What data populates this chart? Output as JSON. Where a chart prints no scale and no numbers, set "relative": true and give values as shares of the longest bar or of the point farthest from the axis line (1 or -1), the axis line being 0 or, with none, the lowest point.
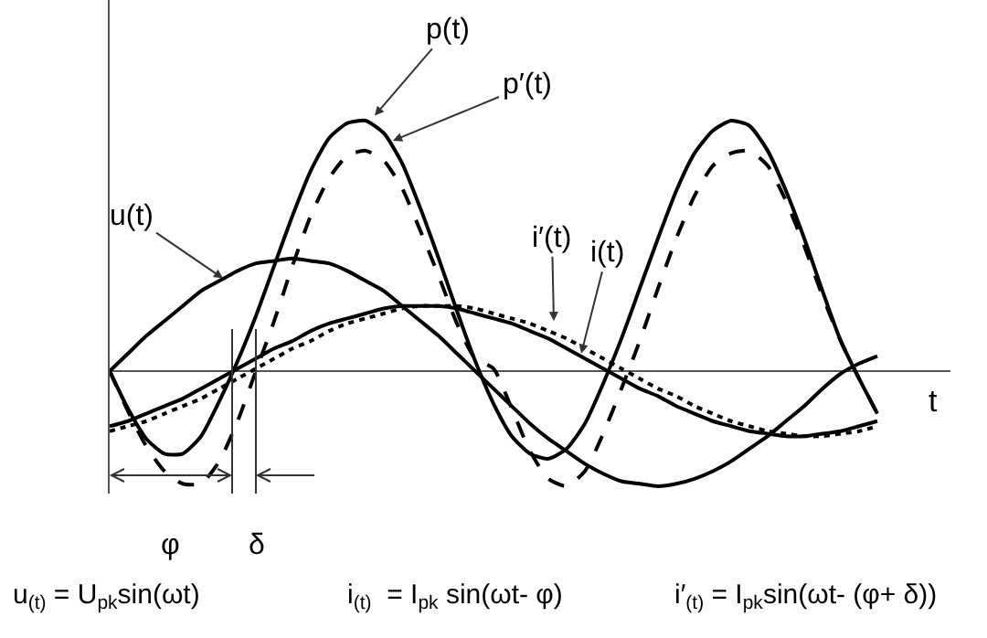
{
  "chart_data": {
    "type": "line",
    "relative": true,
    "legend": false,
    "xlabel": "t",
    "categories": [
      null,
      null,
      null,
      null,
      null,
      null,
      null,
      null,
      null,
      null,
      null,
      null,
      null,
      null,
      null,
      null,
      null,
      null,
      null,
      null,
      null,
      null,
      null,
      null,
      null,
      null,
      null,
      null,
      null,
      null,
      null,
      null,
      null,
      null,
      null,
      null,
      null,
      null,
      null,
      null,
      null,
      null,
      null
    ],
    "series": [
      {
        "name": "u(t)",
        "color": "#000000",
        "line_style": "solid",
        "values": [
          0,
          0.07,
          0.14,
          0.2,
          0.26,
          0.32,
          0.36,
          0.4,
          0.43,
          0.44,
          0.45,
          0.44,
          0.43,
          0.4,
          0.36,
          0.32,
          0.26,
          0.2,
          0.14,
          0.07,
          0,
          -0.07,
          -0.14,
          -0.21,
          -0.27,
          -0.32,
          -0.37,
          -0.41,
          -0.44,
          -0.45,
          -0.46,
          -0.45,
          -0.43,
          -0.4,
          -0.36,
          -0.31,
          -0.26,
          -0.2,
          -0.14,
          -0.07,
          -0.01,
          0.03,
          0.06
        ]
      },
      {
        "name": "i(t)",
        "color": "#000000",
        "line_style": "solid",
        "values": [
          -0.22,
          -0.2,
          -0.17,
          -0.14,
          -0.11,
          -0.07,
          -0.03,
          0.01,
          0.05,
          0.09,
          0.12,
          0.16,
          0.19,
          0.21,
          0.23,
          0.25,
          0.26,
          0.26,
          0.26,
          0.25,
          0.23,
          0.21,
          0.19,
          0.16,
          0.13,
          0.09,
          0.05,
          0.01,
          -0.03,
          -0.07,
          -0.1,
          -0.14,
          -0.17,
          -0.2,
          -0.22,
          -0.24,
          -0.25,
          -0.26,
          -0.26,
          -0.25,
          -0.24,
          -0.22,
          -0.2
        ]
      },
      {
        "name": "i′(t)",
        "color": "#000000",
        "line_style": "dotted",
        "values": [
          -0.24,
          -0.22,
          -0.2,
          -0.17,
          -0.14,
          -0.11,
          -0.07,
          -0.03,
          0.01,
          0.05,
          0.09,
          0.12,
          0.16,
          0.19,
          0.21,
          0.23,
          0.25,
          0.26,
          0.26,
          0.26,
          0.25,
          0.23,
          0.21,
          0.19,
          0.16,
          0.13,
          0.09,
          0.05,
          0.01,
          -0.03,
          -0.07,
          -0.1,
          -0.14,
          -0.17,
          -0.2,
          -0.22,
          -0.24,
          -0.25,
          -0.26,
          -0.26,
          -0.25,
          -0.24,
          -0.22
        ]
      },
      {
        "name": "p(t)",
        "color": "#000000",
        "line_style": "solid",
        "values": [
          0,
          -0.15,
          -0.27,
          -0.33,
          -0.33,
          -0.26,
          -0.12,
          0.04,
          0.22,
          0.42,
          0.62,
          0.8,
          0.93,
          0.99,
          1,
          0.95,
          0.83,
          0.65,
          0.45,
          0.24,
          0.04,
          -0.13,
          -0.26,
          -0.33,
          -0.35,
          -0.31,
          -0.21,
          -0.05,
          0.13,
          0.33,
          0.53,
          0.72,
          0.87,
          0.96,
          1,
          0.98,
          0.88,
          0.72,
          0.53,
          0.32,
          0.12,
          -0.03,
          -0.17
        ]
      },
      {
        "name": "p′(t)",
        "color": "#000000",
        "line_style": "dashed",
        "values": [
          0,
          -0.16,
          -0.3,
          -0.4,
          -0.45,
          -0.45,
          -0.36,
          -0.2,
          0,
          0.2,
          0.42,
          0.62,
          0.77,
          0.86,
          0.88,
          0.84,
          0.73,
          0.56,
          0.38,
          0.19,
          0.05,
          0.01,
          -0.15,
          -0.32,
          -0.43,
          -0.46,
          -0.4,
          -0.25,
          -0.07,
          0.12,
          0.33,
          0.53,
          0.7,
          0.82,
          0.87,
          0.88,
          0.82,
          0.68,
          0.5,
          0.3,
          0.12,
          -0.03,
          -0.17
        ]
      }
    ],
    "annotations": [
      "φ",
      "δ",
      "u$_{(t)}$ = U$_{pk}$sin(ωt)",
      "i$_{(t)}$  = I$_{pk}$ sin(ωt- φ)",
      "i′$_{(t)}$ = I$_{pk}$sin(ωt- (φ+ δ))"
    ]
  }
}
